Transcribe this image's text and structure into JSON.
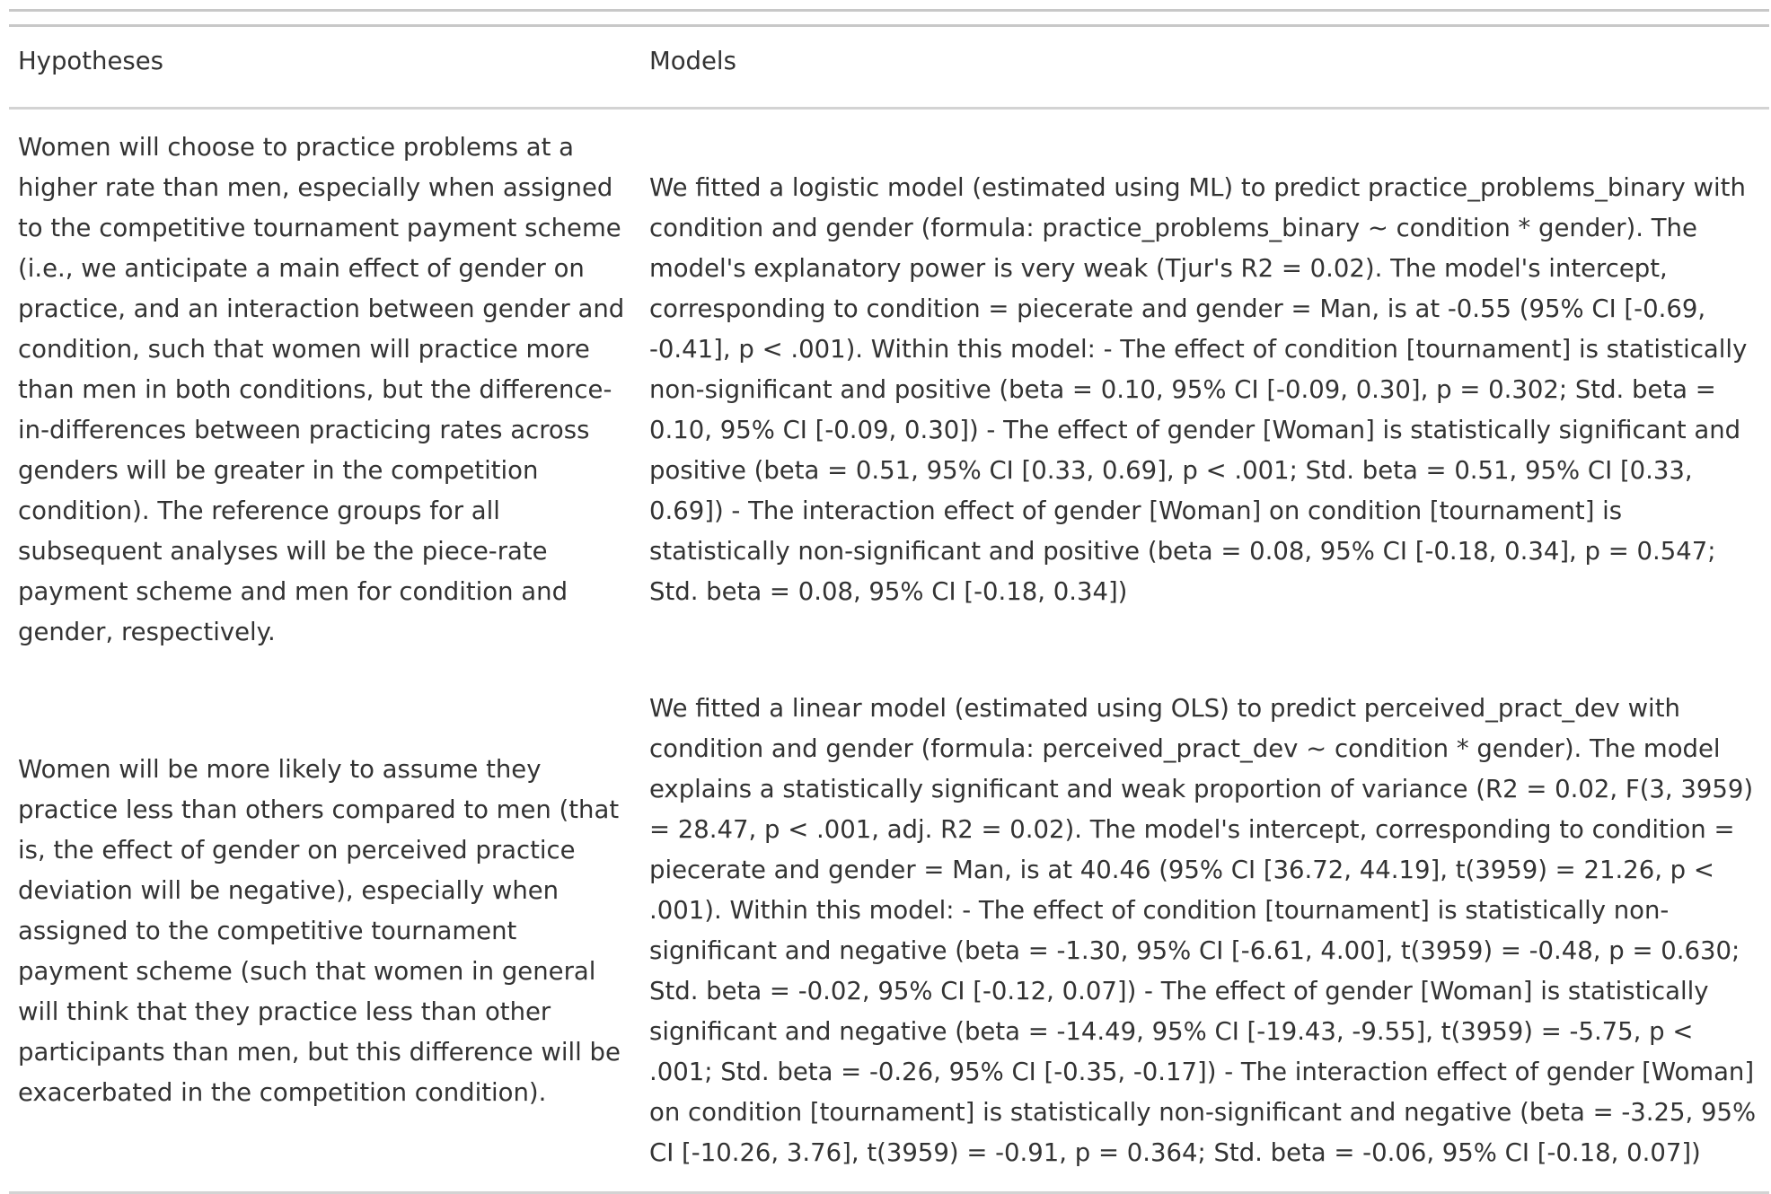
{
  "table": {
    "headers": {
      "hypotheses": "Hypotheses",
      "models": "Models"
    },
    "rows": [
      {
        "hypothesis": "Women will choose to practice problems at a higher rate than men, especially when assigned to the competitive tournament payment scheme (i.e., we anticipate a main effect of gender on practice, and an interaction between gender and condition, such that women will practice more than men in both conditions, but the difference-in-differences between practicing rates across genders will be greater in the competition condition). The reference groups for all subsequent analyses will be the piece-rate payment scheme and men for condition and gender, respectively.",
        "model": "We fitted a logistic model (estimated using ML) to predict practice_problems_binary with condition and gender (formula: practice_problems_binary ~ condition * gender). The model's explanatory power is very weak (Tjur's R2 = 0.02). The model's intercept, corresponding to condition = piecerate and gender = Man, is at -0.55 (95% CI [-0.69, -0.41], p < .001). Within this model: - The effect of condition [tournament] is statistically non-significant and positive (beta = 0.10, 95% CI [-0.09, 0.30], p = 0.302; Std. beta = 0.10, 95% CI [-0.09, 0.30]) - The effect of gender [Woman] is statistically significant and positive (beta = 0.51, 95% CI [0.33, 0.69], p < .001; Std. beta = 0.51, 95% CI [0.33, 0.69]) - The interaction effect of gender [Woman] on condition [tournament] is statistically non-significant and positive (beta = 0.08, 95% CI [-0.18, 0.34], p = 0.547; Std. beta = 0.08, 95% CI [-0.18, 0.34])"
      },
      {
        "hypothesis": "Women will be more likely to assume they practice less than others compared to men (that is, the effect of gender on perceived practice deviation will be negative), especially when assigned to the competitive tournament payment scheme (such that women in general will think that they practice less than other participants than men, but this difference will be exacerbated in the competition condition).",
        "model": "We fitted a linear model (estimated using OLS) to predict perceived_pract_dev with condition and gender (formula: perceived_pract_dev ~ condition * gender). The model explains a statistically significant and weak proportion of variance (R2 = 0.02, F(3, 3959) = 28.47, p < .001, adj. R2 = 0.02). The model's intercept, corresponding to condition = piecerate and gender = Man, is at 40.46 (95% CI [36.72, 44.19], t(3959) = 21.26, p < .001). Within this model: - The effect of condition [tournament] is statistically non-significant and negative (beta = -1.30, 95% CI [-6.61, 4.00], t(3959) = -0.48, p = 0.630; Std. beta = -0.02, 95% CI [-0.12, 0.07]) - The effect of gender [Woman] is statistically significant and negative (beta = -14.49, 95% CI [-19.43, -9.55], t(3959) = -5.75, p < .001; Std. beta = -0.26, 95% CI [-0.35, -0.17]) - The interaction effect of gender [Woman] on condition [tournament] is statistically non-significant and negative (beta = -3.25, 95% CI [-10.26, 3.76], t(3959) = -0.91, p = 0.364; Std. beta = -0.06, 95% CI [-0.18, 0.07])"
      }
    ]
  }
}
